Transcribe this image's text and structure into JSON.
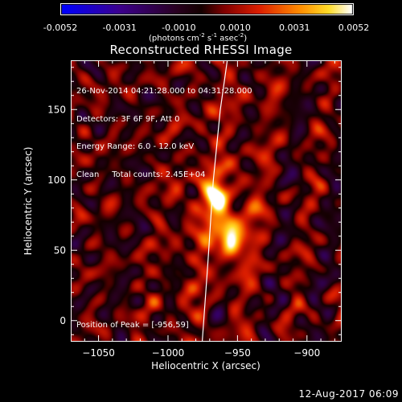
{
  "chart_data": {
    "type": "heatmap",
    "title": "Reconstructed RHESSI Image",
    "xlabel": "Heliocentric X (arcsec)",
    "ylabel": "Heliocentric Y (arcsec)",
    "xlim": [
      -1070,
      -875
    ],
    "ylim": [
      -15,
      185
    ],
    "x_ticks": [
      -1050,
      -1000,
      -950,
      -900
    ],
    "y_ticks": [
      0,
      50,
      100,
      150
    ],
    "colorbar": {
      "range": [
        -0.0052,
        0.0052
      ],
      "ticks": [
        "-0.0052",
        "-0.0031",
        "-0.0010",
        "0.0010",
        "0.0031",
        "0.0052"
      ],
      "units": "(photons cm",
      "units_exp1": "-2",
      "units_mid": " s",
      "units_exp2": "-1",
      "units_mid2": " asec",
      "units_exp3": "-2",
      "units_end": ")",
      "colormap": "hot-with-blue-negative"
    },
    "sources": [
      {
        "x": -966,
        "y": 88,
        "peak": 0.005
      },
      {
        "x": -956,
        "y": 59,
        "peak": 0.0052
      }
    ],
    "limb_arc": [
      [
        -976,
        -15
      ],
      [
        -972,
        40
      ],
      [
        -968,
        100
      ],
      [
        -963,
        150
      ],
      [
        -958,
        185
      ]
    ],
    "info_lines": [
      "26-Nov-2014 04:21:28.000 to 04:31:28.000",
      "Detectors: 3F 6F 9F, Att 0",
      "Energy Range: 6.0 - 12.0 keV",
      "Clean     Total counts: 2.45E+04"
    ],
    "peak_label": "Position of Peak = [-956,59]"
  },
  "footer": {
    "timestamp": "12-Aug-2017 06:09"
  }
}
